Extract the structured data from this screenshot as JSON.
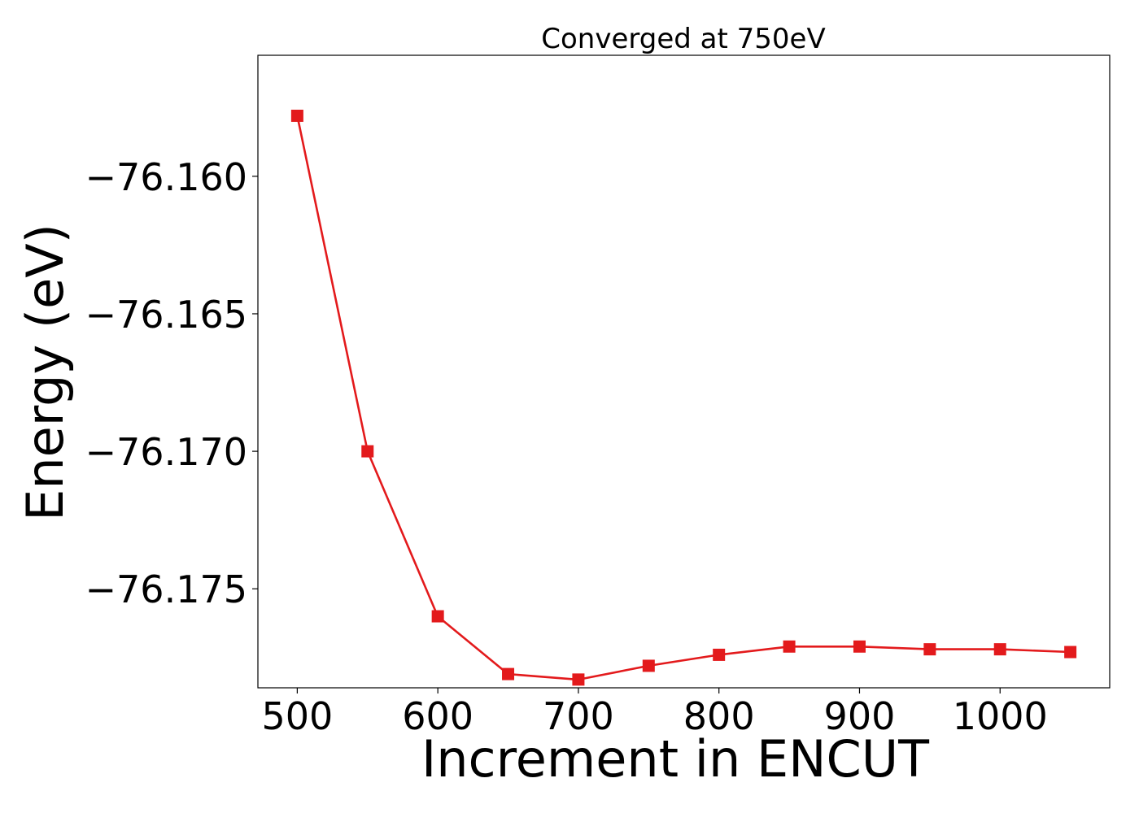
{
  "chart_data": {
    "type": "line",
    "title": "Converged at 750eV",
    "xlabel": "Increment in ENCUT",
    "ylabel": "Energy (eV)",
    "xlim": [
      472,
      1078
    ],
    "ylim": [
      -76.1786,
      -76.1556
    ],
    "x_ticks": [
      500,
      600,
      700,
      800,
      900,
      1000
    ],
    "y_ticks": [
      -76.16,
      -76.165,
      -76.17,
      -76.175
    ],
    "x_tick_labels": [
      "500",
      "600",
      "700",
      "800",
      "900",
      "1000"
    ],
    "y_tick_labels": [
      "−76.160",
      "−76.165",
      "−76.170",
      "−76.175"
    ],
    "grid": false,
    "series": [
      {
        "color": "#e31a1c",
        "marker": "square",
        "x": [
          500,
          550,
          600,
          650,
          700,
          750,
          800,
          850,
          900,
          950,
          1000,
          1050
        ],
        "y": [
          -76.1578,
          -76.17,
          -76.176,
          -76.1781,
          -76.1783,
          -76.1778,
          -76.1774,
          -76.1771,
          -76.1771,
          -76.1772,
          -76.1772,
          -76.1773
        ]
      }
    ]
  }
}
